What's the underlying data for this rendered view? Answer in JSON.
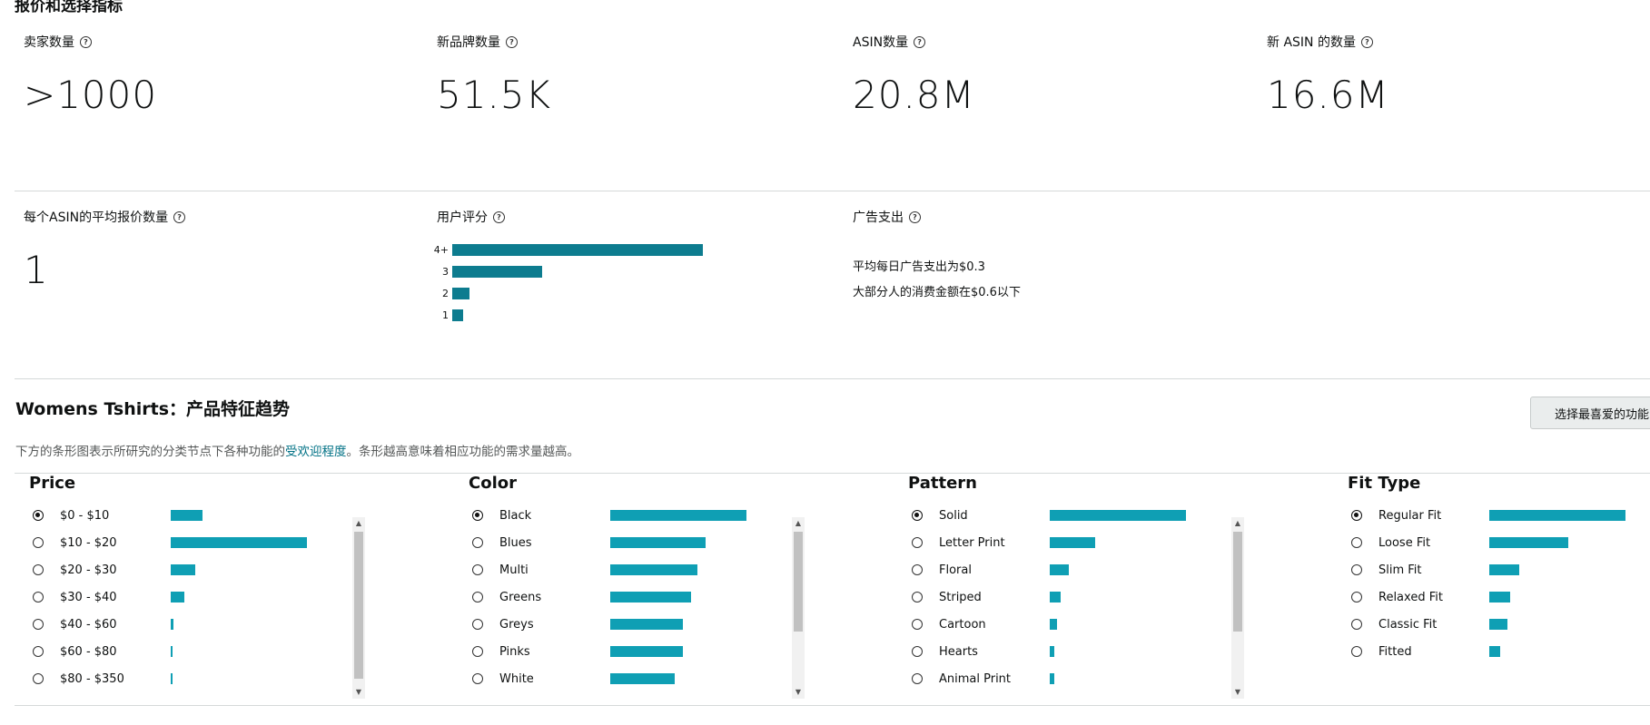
{
  "header": {
    "title": "报价和选择指标"
  },
  "metrics_row1": [
    {
      "label": "卖家数量",
      "value": ">1000"
    },
    {
      "label": "新品牌数量",
      "value": "51.5K"
    },
    {
      "label": "ASIN数量",
      "value": "20.8M"
    },
    {
      "label": "新 ASIN 的数量",
      "value": "16.6M"
    }
  ],
  "metrics_row2": {
    "avg_offers": {
      "label": "每个ASIN的平均报价数量",
      "value": "1"
    },
    "ratings": {
      "label": "用户评分",
      "bars": [
        {
          "label": "4+",
          "value": 1.0
        },
        {
          "label": "3",
          "value": 0.36
        },
        {
          "label": "2",
          "value": 0.07
        },
        {
          "label": "1",
          "value": 0.045
        }
      ]
    },
    "ad_spend": {
      "label": "广告支出",
      "line1": "平均每日广告支出为$0.3",
      "line2": "大部分人的消费金额在$0.6以下"
    }
  },
  "trends": {
    "title": "Womens Tshirts：产品特征趋势",
    "desc_before": "下方的条形图表示所研究的分类节点下各种功能的",
    "desc_link": "受欢迎程度",
    "desc_after": "。条形越高意味着相应功能的需求量越高。",
    "fav_button": "选择最喜爱的功能"
  },
  "features": [
    {
      "title": "Price",
      "items": [
        {
          "name": "$0 - $10",
          "value": 0.23,
          "selected": true
        },
        {
          "name": "$10 - $20",
          "value": 1.0
        },
        {
          "name": "$20 - $30",
          "value": 0.18
        },
        {
          "name": "$30 - $40",
          "value": 0.1
        },
        {
          "name": "$40 - $60",
          "value": 0.02
        },
        {
          "name": "$60 - $80",
          "value": 0.01
        },
        {
          "name": "$80 - $350",
          "value": 0.01
        }
      ]
    },
    {
      "title": "Color",
      "items": [
        {
          "name": "Black",
          "value": 1.0,
          "selected": true
        },
        {
          "name": "Blues",
          "value": 0.7
        },
        {
          "name": "Multi",
          "value": 0.64
        },
        {
          "name": "Greens",
          "value": 0.59
        },
        {
          "name": "Greys",
          "value": 0.53
        },
        {
          "name": "Pinks",
          "value": 0.53
        },
        {
          "name": "White",
          "value": 0.47
        }
      ]
    },
    {
      "title": "Pattern",
      "items": [
        {
          "name": "Solid",
          "value": 1.0,
          "selected": true
        },
        {
          "name": "Letter Print",
          "value": 0.33
        },
        {
          "name": "Floral",
          "value": 0.14
        },
        {
          "name": "Striped",
          "value": 0.08
        },
        {
          "name": "Cartoon",
          "value": 0.05
        },
        {
          "name": "Hearts",
          "value": 0.03
        },
        {
          "name": "Animal Print",
          "value": 0.03
        }
      ]
    },
    {
      "title": "Fit Type",
      "items": [
        {
          "name": "Regular Fit",
          "value": 1.0,
          "selected": true
        },
        {
          "name": "Loose Fit",
          "value": 0.58
        },
        {
          "name": "Slim Fit",
          "value": 0.22
        },
        {
          "name": "Relaxed Fit",
          "value": 0.15
        },
        {
          "name": "Classic Fit",
          "value": 0.13
        },
        {
          "name": "Fitted",
          "value": 0.08
        }
      ]
    }
  ]
}
